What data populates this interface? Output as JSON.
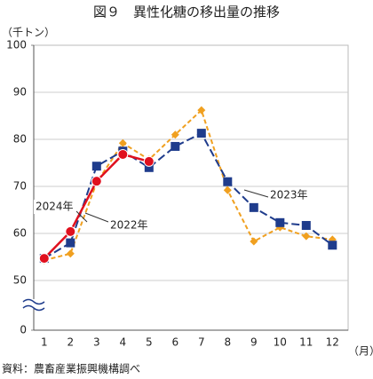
{
  "chart_data": {
    "type": "line",
    "title": "図９　異性化糖の移出量の推移",
    "y_unit": "（千トン）",
    "x_unit": "（月）",
    "source": "資料：農畜産業振興機構調べ",
    "categories": [
      "1",
      "2",
      "3",
      "4",
      "5",
      "6",
      "7",
      "8",
      "9",
      "10",
      "11",
      "12"
    ],
    "series": [
      {
        "name": "2022年",
        "color": "#f0a020",
        "marker": "diamond",
        "dash": "dashed",
        "values": [
          54.3,
          55.7,
          70.8,
          79.2,
          75.7,
          81,
          86.2,
          69.2,
          58.3,
          61.3,
          59.4,
          58.7
        ]
      },
      {
        "name": "2023年",
        "color": "#1f3c8c",
        "marker": "square",
        "dash": "long-dash",
        "values": [
          54.7,
          58,
          74.3,
          77.5,
          74,
          78.5,
          81.3,
          71,
          65.5,
          62.3,
          61.7,
          57.5
        ]
      },
      {
        "name": "2024年",
        "color": "#e0101e",
        "marker": "circle",
        "dash": "solid",
        "values": [
          54.7,
          60.4,
          71.1,
          76.8,
          75.3,
          null,
          null,
          null,
          null,
          null,
          null,
          null
        ]
      }
    ],
    "ylim": [
      0,
      100
    ],
    "yticks": [
      0,
      50,
      60,
      70,
      80,
      90,
      100
    ],
    "axis_break": true,
    "grid": true
  }
}
